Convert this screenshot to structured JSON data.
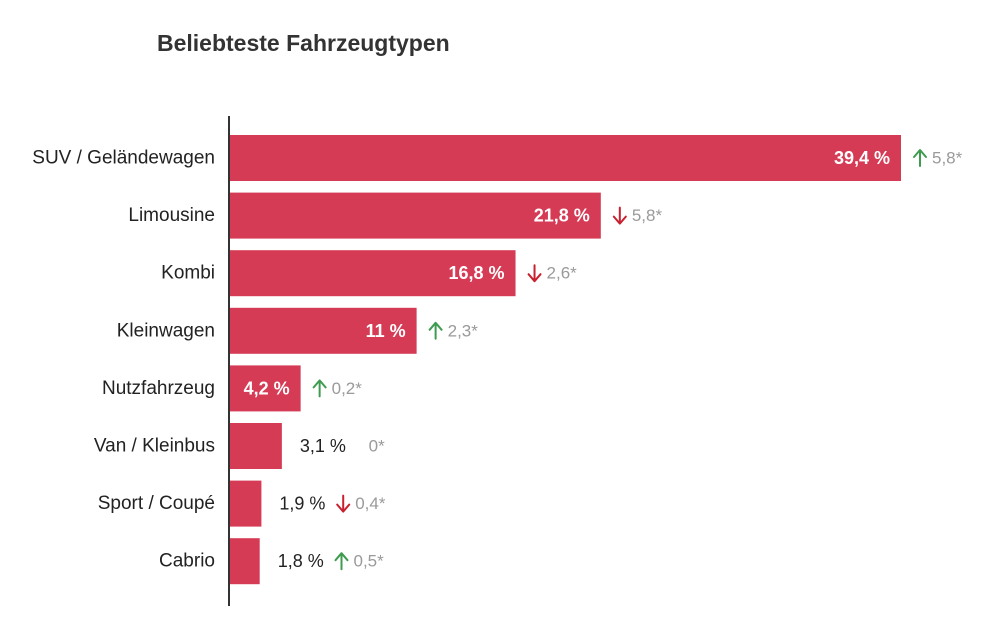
{
  "chart_data": {
    "type": "bar",
    "orientation": "horizontal",
    "title": "Beliebteste Fahrzeugtypen",
    "xlabel": "",
    "ylabel": "",
    "categories": [
      "SUV / Geländewagen",
      "Limousine",
      "Kombi",
      "Kleinwagen",
      "Nutzfahrzeug",
      "Van / Kleinbus",
      "Sport / Coupé",
      "Cabrio"
    ],
    "values": [
      39.4,
      21.8,
      16.8,
      11,
      4.2,
      3.1,
      1.9,
      1.8
    ],
    "value_labels": [
      "39,4 %",
      "21,8 %",
      "16,8 %",
      "11 %",
      "4,2 %",
      "3,1 %",
      "1,9 %",
      "1,8 %"
    ],
    "changes": [
      {
        "direction": "up",
        "value": 5.8,
        "label": "5,8*"
      },
      {
        "direction": "down",
        "value": 5.8,
        "label": "5,8*"
      },
      {
        "direction": "down",
        "value": 2.6,
        "label": "2,6*"
      },
      {
        "direction": "up",
        "value": 2.3,
        "label": "2,3*"
      },
      {
        "direction": "up",
        "value": 0.2,
        "label": "0,2*"
      },
      {
        "direction": "none",
        "value": 0,
        "label": "0*"
      },
      {
        "direction": "down",
        "value": 0.4,
        "label": "0,4*"
      },
      {
        "direction": "up",
        "value": 0.5,
        "label": "0,5*"
      }
    ],
    "xlim": [
      0,
      39.4
    ],
    "grid": false,
    "legend": "none",
    "colors": {
      "bar": "#d63b55",
      "up": "#3e9b4f",
      "down": "#c8202f",
      "change_text": "#9a9a9a",
      "label": "#222222"
    }
  }
}
